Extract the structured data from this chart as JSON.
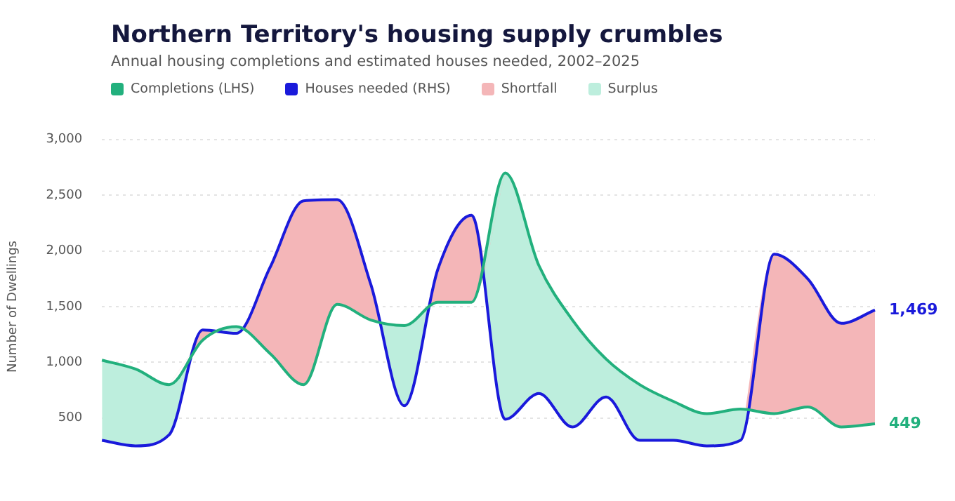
{
  "chart_data": {
    "type": "line",
    "title": "Northern Territory's housing supply crumbles",
    "subtitle": "Annual housing completions and estimated houses needed, 2002–2025",
    "ylabel": "Number of Dwellings",
    "categories": [
      null,
      null,
      null,
      null,
      null,
      null,
      null,
      null,
      null,
      null,
      null,
      null,
      null,
      null,
      null,
      null,
      null,
      null,
      null,
      null,
      null,
      null,
      null,
      null
    ],
    "series": [
      {
        "name": "Completions (LHS)",
        "color": "#22b07d",
        "values": [
          1020,
          940,
          800,
          1200,
          1320,
          1080,
          800,
          1520,
          1380,
          1330,
          1540,
          1540,
          2700,
          1870,
          1380,
          1030,
          800,
          650,
          540,
          580,
          540,
          600,
          420,
          449
        ],
        "value_labels": [
          null,
          null,
          null,
          null,
          null,
          null,
          null,
          null,
          null,
          null,
          null,
          null,
          null,
          null,
          null,
          null,
          null,
          null,
          null,
          null,
          null,
          null,
          null,
          "449"
        ]
      },
      {
        "name": "Houses needed (RHS)",
        "color": "#1a1adb",
        "values": [
          300,
          250,
          350,
          1290,
          1260,
          1850,
          2450,
          2460,
          1700,
          610,
          1840,
          2320,
          490,
          720,
          420,
          690,
          300,
          300,
          250,
          300,
          1970,
          1750,
          1350,
          1469
        ],
        "value_labels": [
          null,
          null,
          null,
          null,
          null,
          null,
          null,
          null,
          null,
          null,
          null,
          null,
          null,
          null,
          null,
          null,
          null,
          null,
          null,
          null,
          null,
          null,
          null,
          "1,469"
        ]
      },
      {
        "name": "Shortfall",
        "type": "area",
        "color": "#f4b6b8",
        "values": [
          null,
          null,
          null,
          null,
          null,
          null,
          null,
          null,
          null,
          null,
          null,
          null,
          null,
          null,
          null,
          null,
          null,
          null,
          null,
          null,
          null,
          null,
          null,
          null
        ],
        "upper": [
          null,
          null,
          350,
          1290,
          1260,
          1850,
          2450,
          2460,
          1700,
          610,
          1840,
          2320,
          490,
          null,
          null,
          null,
          null,
          null,
          null,
          300,
          1970,
          1750,
          1350,
          1470
        ],
        "lower": [
          null,
          null,
          800,
          1200,
          1320,
          1080,
          800,
          1520,
          1380,
          1330,
          1540,
          1540,
          2700,
          null,
          null,
          null,
          null,
          null,
          null,
          580,
          540,
          600,
          420,
          450
        ]
      },
      {
        "name": "Surplus",
        "type": "area",
        "color": "#bdeedd",
        "values": [
          null,
          null,
          null,
          null,
          null,
          null,
          null,
          null,
          null,
          null,
          null,
          null,
          null,
          null,
          null,
          null,
          null,
          null,
          null,
          null,
          null,
          null,
          null,
          null
        ],
        "upper": [
          1020,
          940,
          800,
          1200,
          1320,
          1080,
          null,
          null,
          1380,
          1330,
          1540,
          1540,
          2700,
          1870,
          1380,
          1030,
          800,
          650,
          540,
          580,
          540,
          null,
          null,
          null
        ],
        "lower": [
          300,
          250,
          350,
          1290,
          1260,
          1850,
          null,
          null,
          1700,
          610,
          1840,
          2320,
          490,
          720,
          420,
          690,
          300,
          300,
          250,
          300,
          1970,
          null,
          null,
          null
        ]
      }
    ],
    "ylim": [
      0,
      3000
    ],
    "yticks": [
      {
        "value": 500,
        "label": "500"
      },
      {
        "value": 1000,
        "label": "1,000"
      },
      {
        "value": 1500,
        "label": "1,500"
      },
      {
        "value": 2000,
        "label": "2,000"
      },
      {
        "value": 2500,
        "label": "2,500"
      },
      {
        "value": 3000,
        "label": "3,000"
      }
    ],
    "grid": "y",
    "legend": "top left",
    "marker": "none",
    "line_style": "solid",
    "tick_labels": "y"
  }
}
